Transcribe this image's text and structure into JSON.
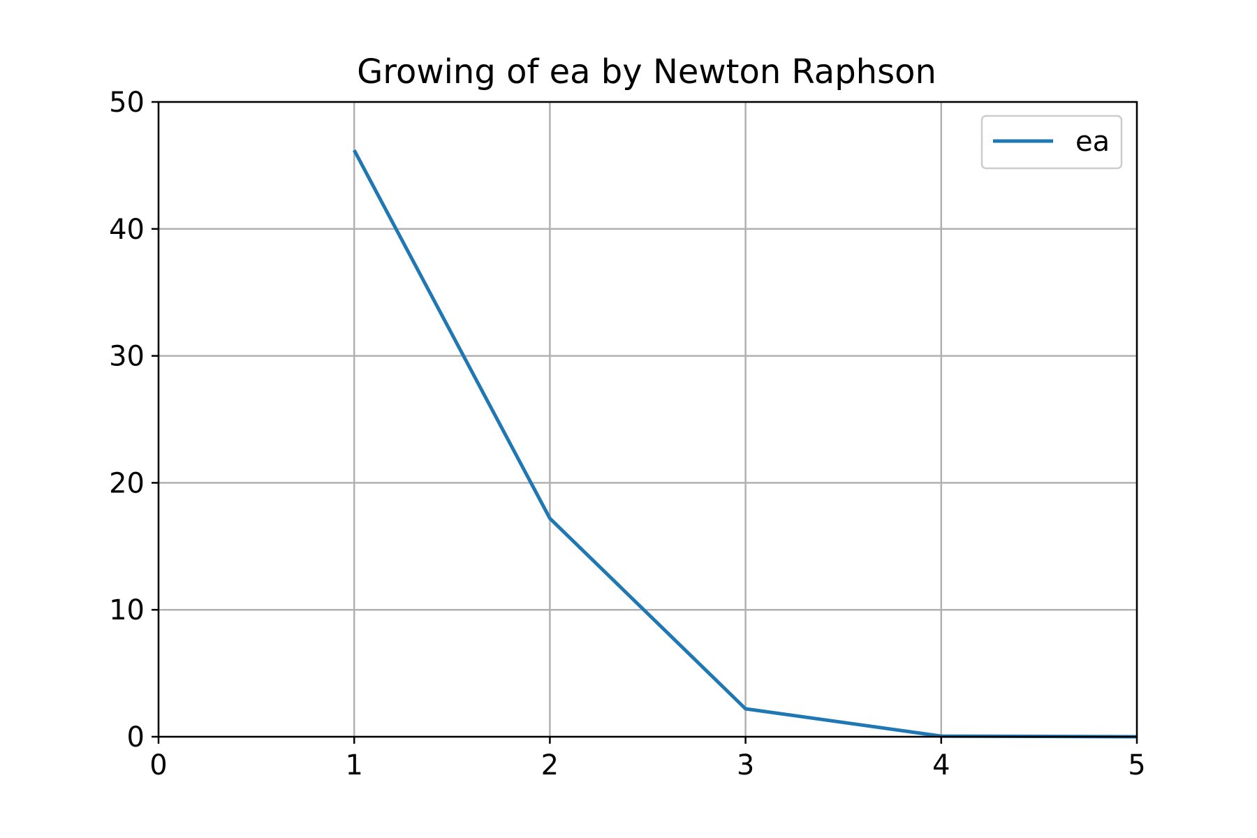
{
  "chart_data": {
    "type": "line",
    "title": "Growing of ea by Newton Raphson",
    "xlabel": "",
    "ylabel": "",
    "xlim": [
      0,
      5
    ],
    "ylim": [
      0,
      50
    ],
    "xticks": [
      "0",
      "1",
      "2",
      "3",
      "4",
      "5"
    ],
    "yticks": [
      "0",
      "10",
      "20",
      "30",
      "40",
      "50"
    ],
    "grid": true,
    "legend_position": "top-right",
    "series": [
      {
        "name": "ea",
        "color": "#1f77b4",
        "x": [
          1,
          2,
          3,
          4,
          5
        ],
        "y": [
          46.2,
          17.2,
          2.2,
          0.05,
          0.0
        ]
      }
    ]
  }
}
